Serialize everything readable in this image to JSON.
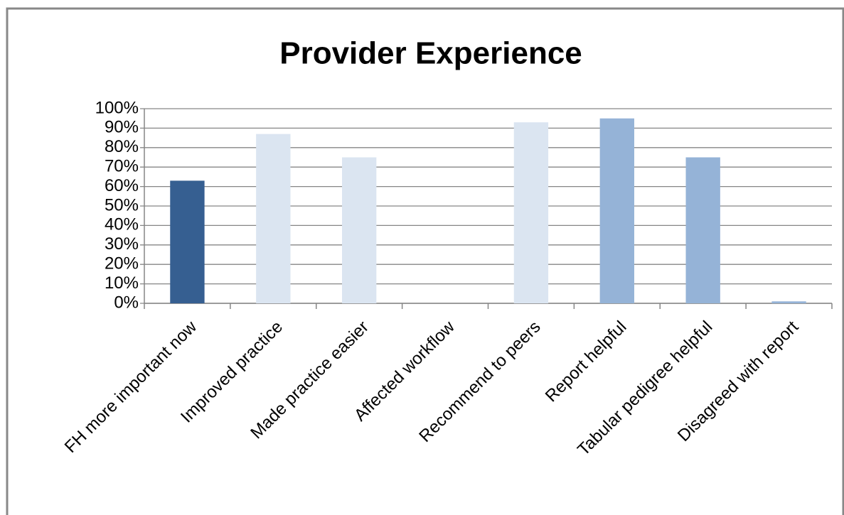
{
  "chart_data": {
    "type": "bar",
    "title": "Provider Experience",
    "categories": [
      "FH more important now",
      "Improved practice",
      "Made practice easier",
      "Affected workflow",
      "Recommend to peers",
      "Report helpful",
      "Tabular pedigree helpful",
      "Disagreed with report"
    ],
    "values": [
      63,
      87,
      75,
      0,
      93,
      95,
      75,
      1
    ],
    "colors": [
      "#365f91",
      "#dbe5f1",
      "#dbe5f1",
      "#dbe5f1",
      "#dbe5f1",
      "#95b3d7",
      "#95b3d7",
      "#95b3d7"
    ],
    "ylim": [
      0,
      100
    ],
    "yticks": [
      {
        "value": 0,
        "label": "0%"
      },
      {
        "value": 10,
        "label": "10%"
      },
      {
        "value": 20,
        "label": "20%"
      },
      {
        "value": 30,
        "label": "30%"
      },
      {
        "value": 40,
        "label": "40%"
      },
      {
        "value": 50,
        "label": "50%"
      },
      {
        "value": 60,
        "label": "60%"
      },
      {
        "value": 70,
        "label": "70%"
      },
      {
        "value": 80,
        "label": "80%"
      },
      {
        "value": 90,
        "label": "90%"
      },
      {
        "value": 100,
        "label": "100%"
      }
    ],
    "grid": true
  }
}
